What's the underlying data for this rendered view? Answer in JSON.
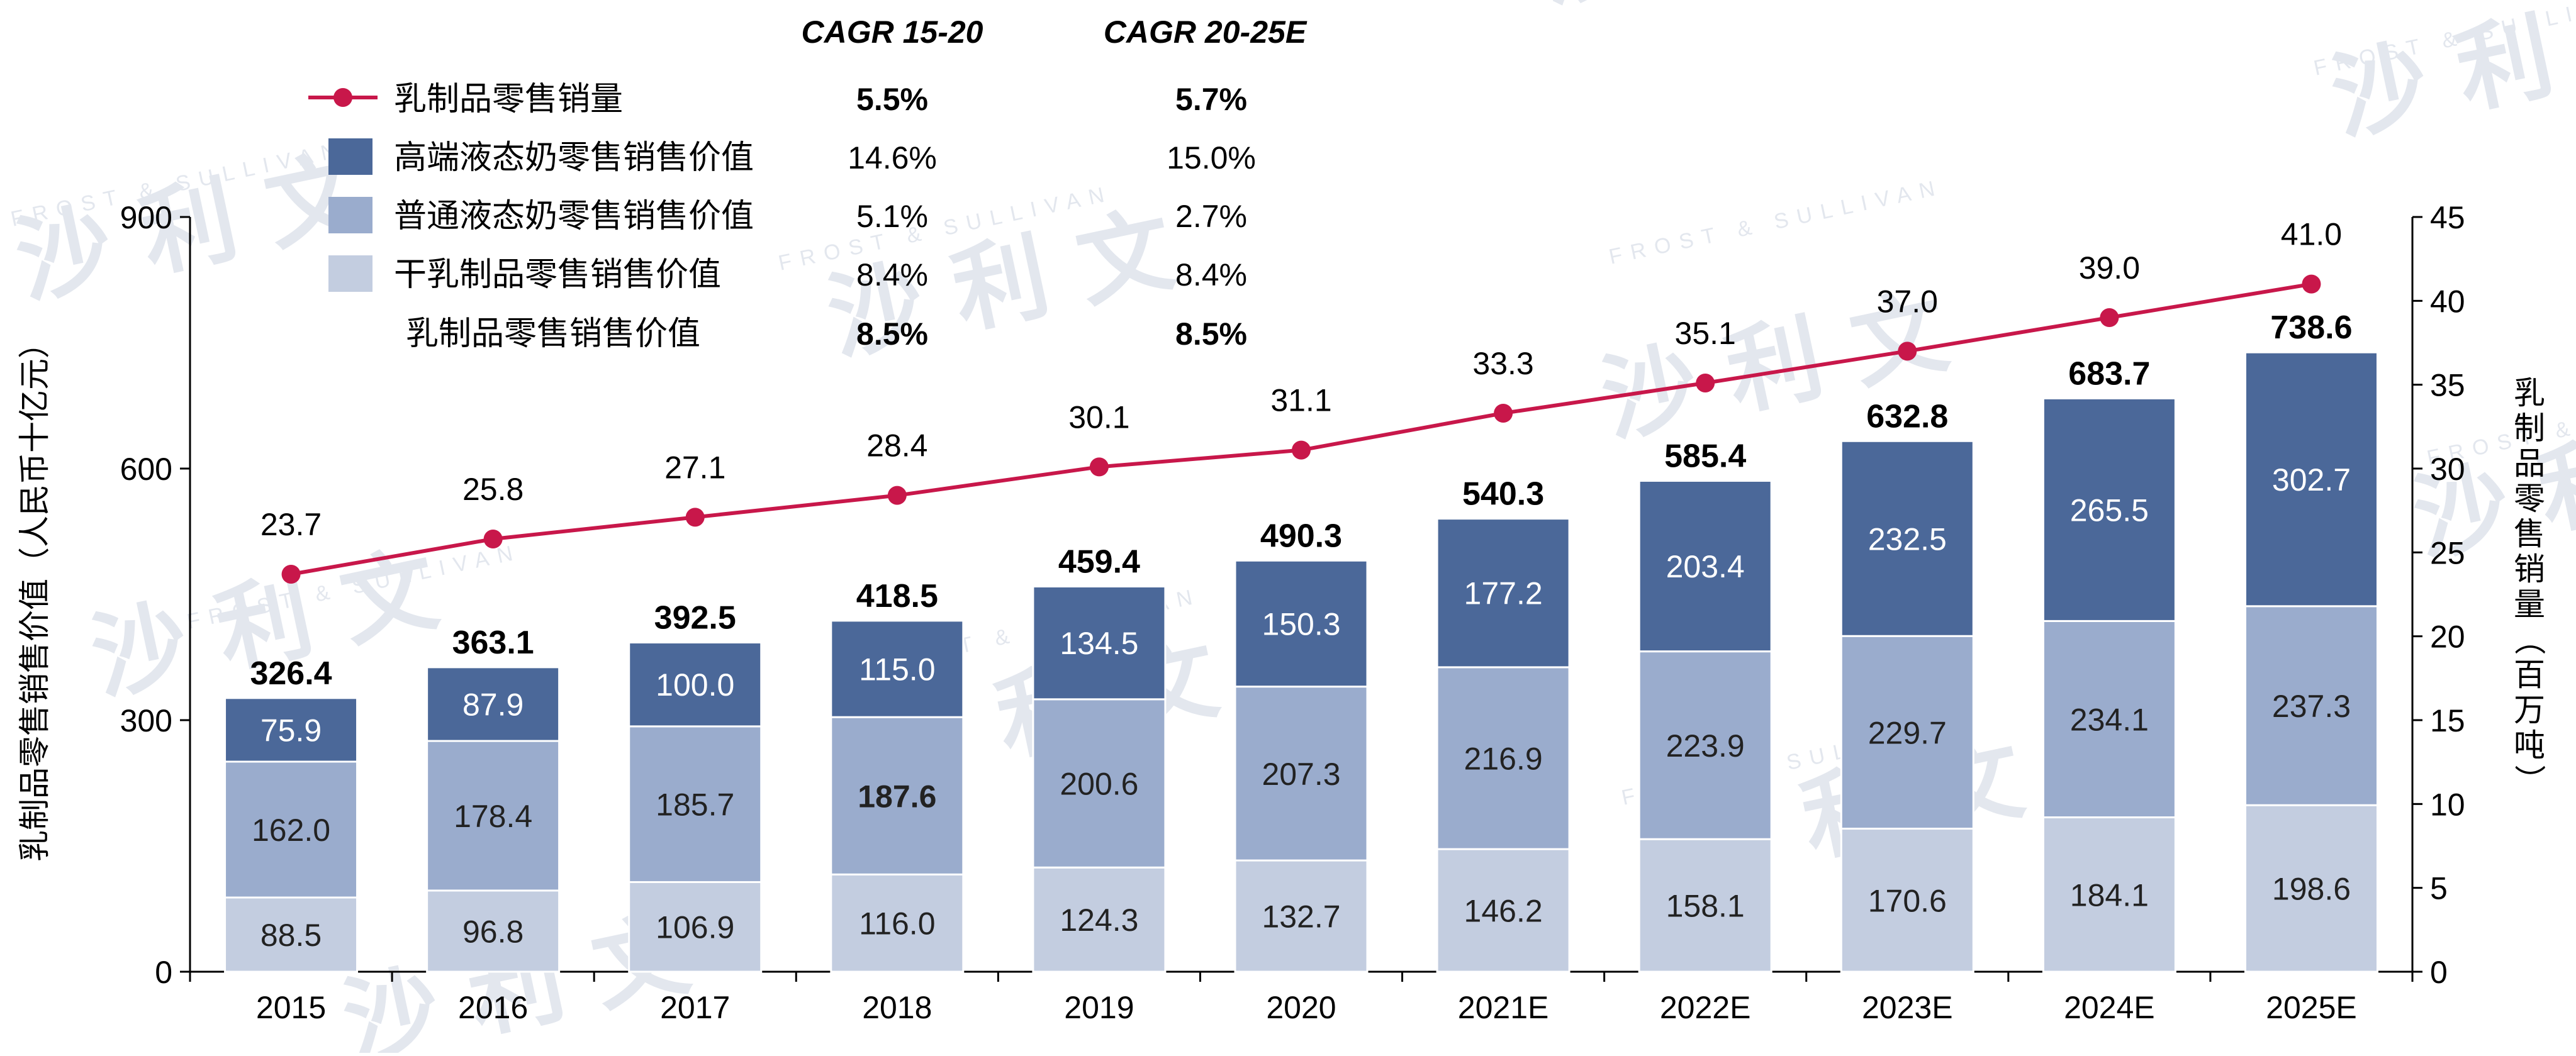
{
  "chart_data": {
    "type": "bar",
    "categories": [
      "2015",
      "2016",
      "2017",
      "2018",
      "2019",
      "2020",
      "2021E",
      "2022E",
      "2023E",
      "2024E",
      "2025E"
    ],
    "series": [
      {
        "name": "干乳制品零售销售价值",
        "values": [
          88.5,
          96.8,
          106.9,
          116.0,
          124.3,
          132.7,
          146.2,
          158.1,
          170.6,
          184.1,
          198.6
        ],
        "color": "#c3cde0"
      },
      {
        "name": "普通液态奶零售销售价值",
        "values": [
          162.0,
          178.4,
          185.7,
          187.6,
          200.6,
          207.3,
          216.9,
          223.9,
          229.7,
          234.1,
          237.3
        ],
        "color": "#9aaccd"
      },
      {
        "name": "高端液态奶零售销售价值",
        "values": [
          75.9,
          87.9,
          100.0,
          115.0,
          134.5,
          150.3,
          177.2,
          203.4,
          232.5,
          265.5,
          302.7
        ],
        "color": "#4b6899"
      }
    ],
    "totals": [
      326.4,
      363.1,
      392.5,
      418.5,
      459.4,
      490.3,
      540.3,
      585.4,
      632.8,
      683.7,
      738.6
    ],
    "line": {
      "name": "乳制品零售销量",
      "values": [
        23.7,
        25.8,
        27.1,
        28.4,
        30.1,
        31.1,
        33.3,
        35.1,
        37.0,
        39.0,
        41.0
      ],
      "color": "#c8174a"
    },
    "ylabel": "乳制品零售销售价值（人民币十亿元）",
    "y2label": "乳制品零售销量（百万吨）",
    "ylim": [
      0,
      900
    ],
    "y_ticks": [
      "0",
      "300",
      "600",
      "900"
    ],
    "y2lim": [
      0,
      45
    ],
    "y2_ticks": [
      "0",
      "5",
      "10",
      "15",
      "20",
      "25",
      "30",
      "35",
      "40",
      "45"
    ],
    "grid": false,
    "legend_position": "top-left",
    "cagr_headers": [
      "CAGR 15-20",
      "CAGR 20-25E"
    ],
    "legend": [
      {
        "label": "乳制品零售销量",
        "marker": "line",
        "cagr": [
          "5.5%",
          "5.7%"
        ],
        "bold": true
      },
      {
        "label": "高端液态奶零售销售价值",
        "marker": "box",
        "color": "#4b6899",
        "cagr": [
          "14.6%",
          "15.0%"
        ],
        "bold": false
      },
      {
        "label": "普通液态奶零售销售价值",
        "marker": "box",
        "color": "#9aaccd",
        "cagr": [
          "5.1%",
          "2.7%"
        ],
        "bold": false
      },
      {
        "label": "干乳制品零售销售价值",
        "marker": "box",
        "color": "#c3cde0",
        "cagr": [
          "8.4%",
          "8.4%"
        ],
        "bold": false
      },
      {
        "label": "乳制品零售销售价值",
        "marker": "none",
        "cagr": [
          "8.5%",
          "8.5%"
        ],
        "bold": true
      }
    ],
    "bold_segment_labels": [
      {
        "series": 1,
        "index": 3
      }
    ]
  },
  "watermark": {
    "brand": "沙 利 文",
    "latin": "FROST & SULLIVAN",
    "color": "#e3e7ee"
  }
}
